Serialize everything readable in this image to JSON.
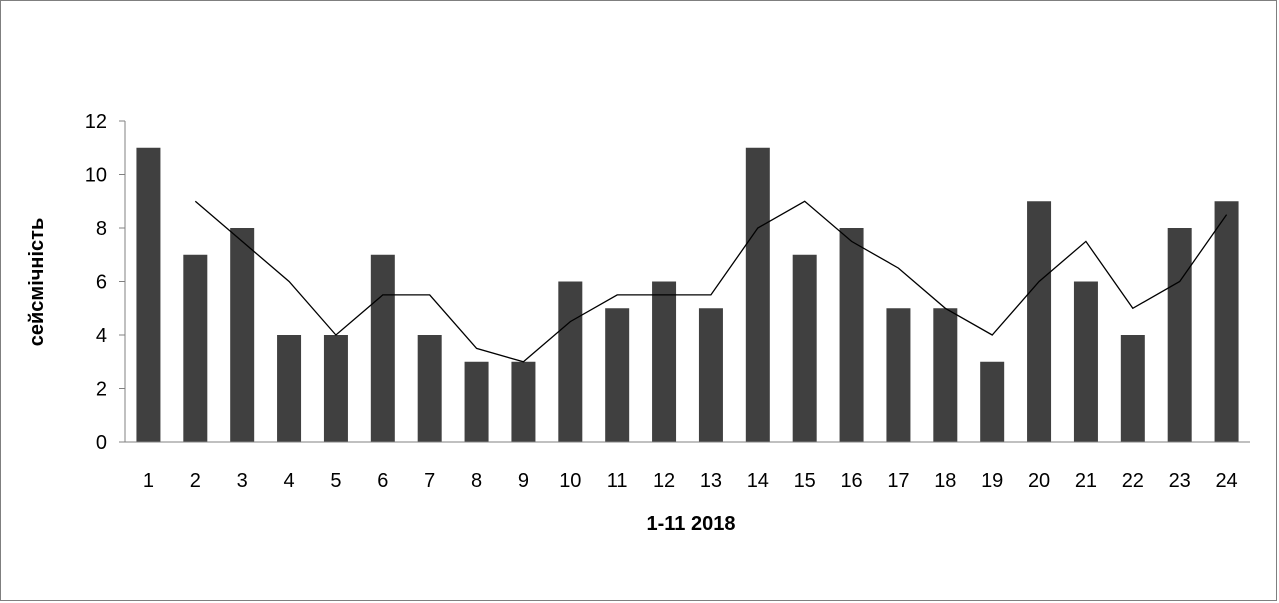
{
  "chart_data": {
    "type": "bar",
    "title": "",
    "xlabel": "1-11 2018",
    "ylabel": "сейсмічність",
    "ylim": [
      0,
      12
    ],
    "yticks": [
      "0",
      "2",
      "4",
      "6",
      "8",
      "10",
      "12"
    ],
    "categories": [
      "1",
      "2",
      "3",
      "4",
      "5",
      "6",
      "7",
      "8",
      "9",
      "10",
      "11",
      "12",
      "13",
      "14",
      "15",
      "16",
      "17",
      "18",
      "19",
      "20",
      "21",
      "22",
      "23",
      "24"
    ],
    "values": [
      11,
      7,
      8,
      4,
      4,
      7,
      4,
      3,
      3,
      6,
      5,
      6,
      5,
      11,
      7,
      8,
      5,
      5,
      3,
      9,
      6,
      4,
      8,
      9
    ],
    "trend": {
      "type": "line",
      "x": [
        "2",
        "3",
        "4",
        "5",
        "6",
        "7",
        "8",
        "9",
        "10",
        "11",
        "12",
        "13",
        "14",
        "15",
        "16",
        "17",
        "18",
        "19",
        "20",
        "21",
        "22",
        "23",
        "24"
      ],
      "values": [
        9,
        7.5,
        6,
        4,
        5.5,
        5.5,
        3.5,
        3,
        4.5,
        5.5,
        5.5,
        5.5,
        8,
        9,
        7.5,
        6.5,
        5,
        4,
        6,
        7.5,
        5,
        6,
        8.5
      ]
    },
    "grid": false,
    "legend": "none",
    "colors": {
      "bar": "#404040",
      "line": "#000000",
      "axis": "#808080"
    }
  }
}
